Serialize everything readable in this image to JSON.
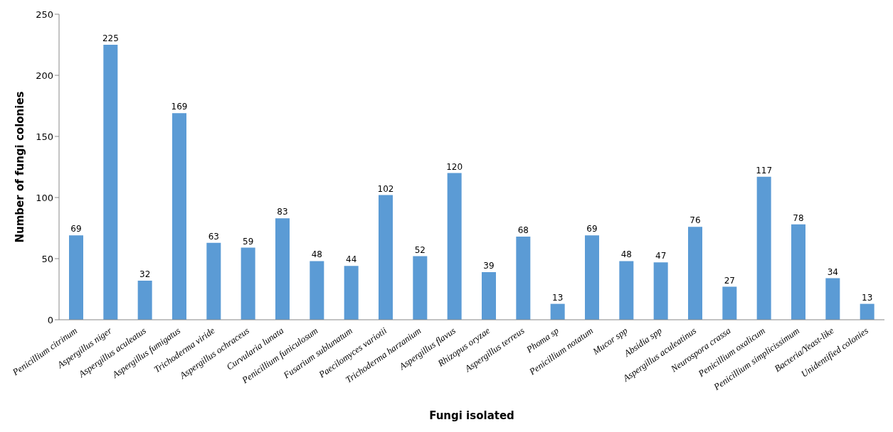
{
  "chart_data": {
    "type": "bar",
    "xlabel": "Fungi isolated",
    "ylabel": "Number of fungi colonies",
    "categories": [
      "Penicillium citrinum",
      "Aspergillus niger",
      "Aspergillus aculeatus",
      "Aspergillus fumigatus",
      "Trichoderma viride",
      "Aspergillus ochraceus",
      "Curvularia lunata",
      "Penicillium funiculosum",
      "Fusarium sublunatum",
      "Paecilomyces variotii",
      "Trichoderma harzanium",
      "Aspergillus flavus",
      "Rhizopus oryzae",
      "Aspergillus terreus",
      "Phoma sp",
      "Penicillium notatum",
      "Mucor spp",
      "Absidia spp",
      "Aspergillus aculeatinus",
      "Neurospora crassa",
      "Penicillium oxalicum",
      "Penicillium simplicissimum",
      "Bacteria/Yeast-like",
      "Unidentified colonies"
    ],
    "values": [
      69,
      225,
      32,
      169,
      63,
      59,
      83,
      48,
      44,
      102,
      52,
      120,
      39,
      68,
      13,
      69,
      48,
      47,
      76,
      27,
      117,
      78,
      34,
      13
    ],
    "color": "#5b9bd5",
    "ylim": [
      0,
      250
    ],
    "yticks": [
      0,
      50,
      100,
      150,
      200,
      250
    ],
    "data_labels": true
  }
}
